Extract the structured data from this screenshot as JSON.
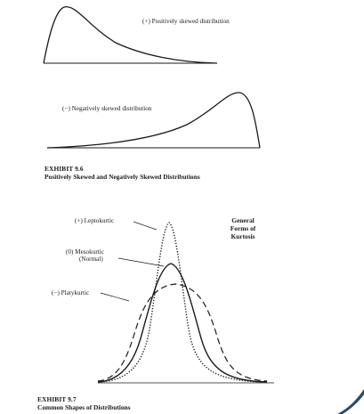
{
  "exhibit_96": {
    "pos_label": "(+) Positively skewed distribution",
    "neg_label": "(−) Negatively skewed distribution",
    "number": "EXHIBIT 9.6",
    "title": "Positively Skewed and Negatively Skewed Distributions"
  },
  "exhibit_97": {
    "lepto_label": "(+) Leptokurtic",
    "meso_label_1": "(0) Mesokurtic",
    "meso_label_2": "(Normal)",
    "platy_label": "(−) Platykurtic",
    "side_title_1": "General",
    "side_title_2": "Forms of",
    "side_title_3": "Kurtosis",
    "number": "EXHIBIT 9.7",
    "title": "Common Shapes of Distributions"
  },
  "colors": {
    "ink": "#1a1a1a",
    "corner_accent": "#2a4d66"
  }
}
